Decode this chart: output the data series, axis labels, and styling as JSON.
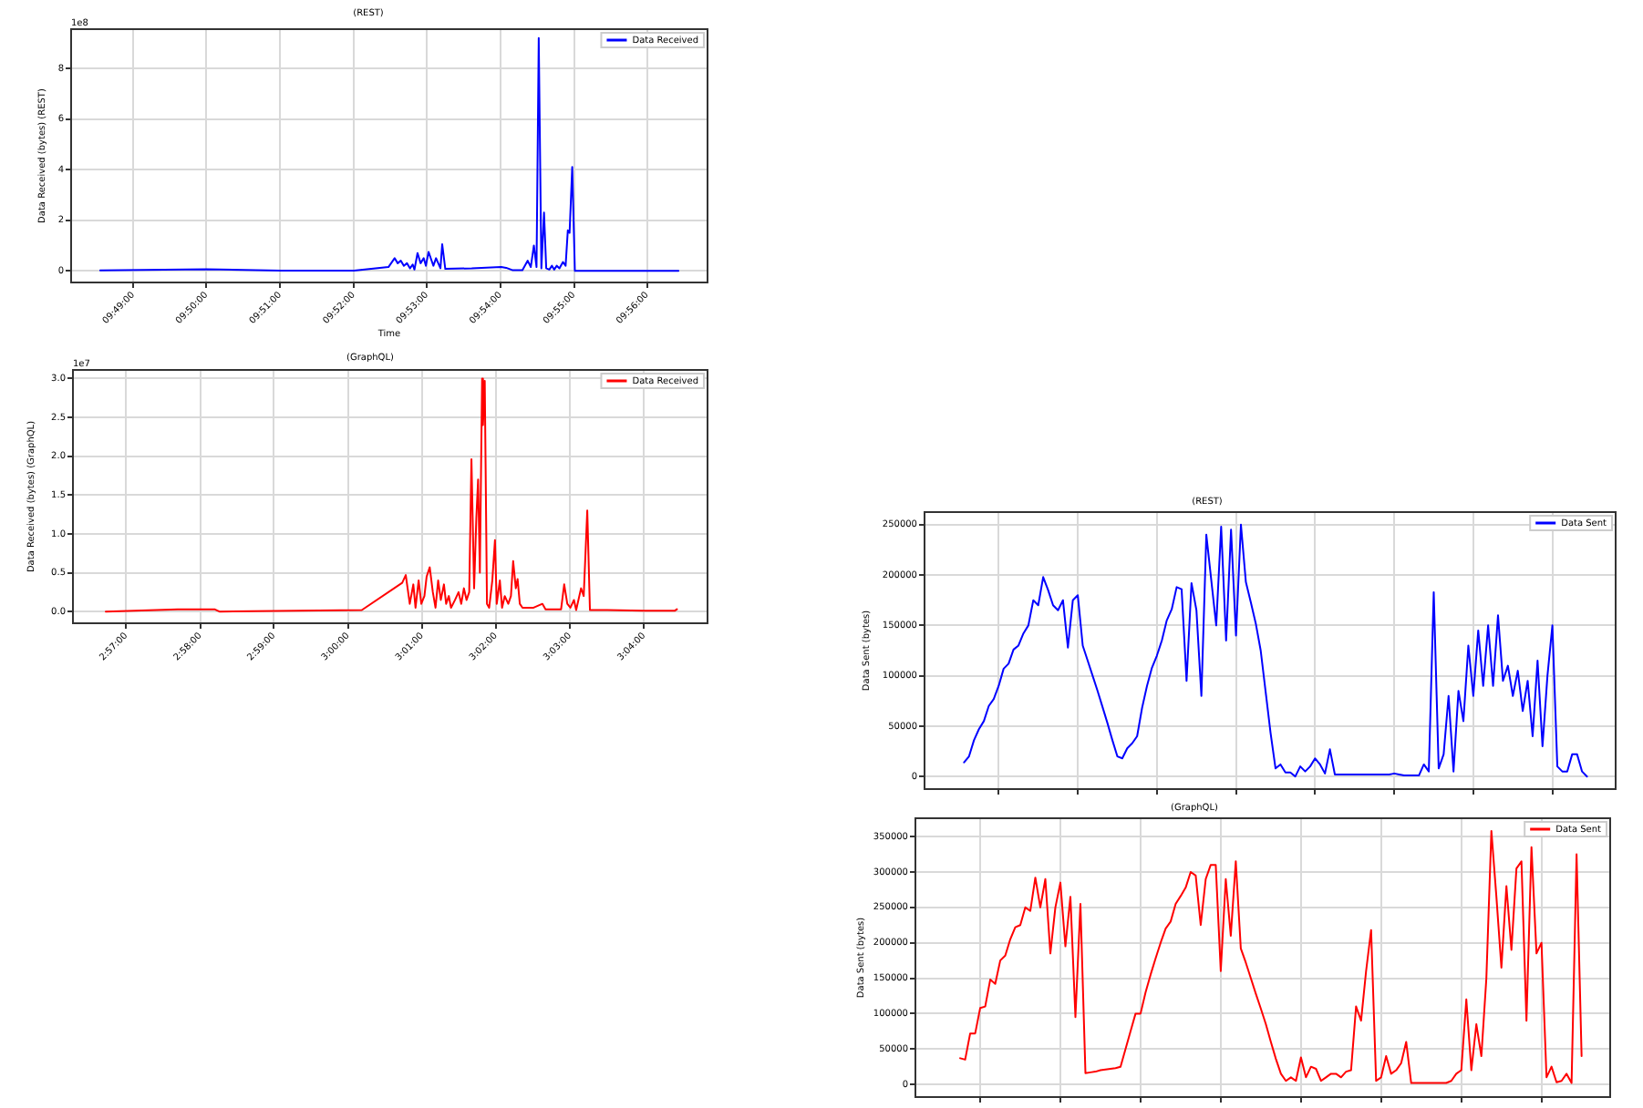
{
  "chart_data": [
    {
      "type": "line",
      "title": "(REST)",
      "xlabel": "Time",
      "ylabel": "Data Received (bytes) (REST)",
      "annotations": [
        "1e8"
      ],
      "grid": true,
      "legend": "top right",
      "xlim": [
        9.8026,
        9.947
      ],
      "xticks": [
        {
          "value": 9.8167,
          "label": "09:49:00"
        },
        {
          "value": 9.8333,
          "label": "09:50:00"
        },
        {
          "value": 9.85,
          "label": "09:51:00"
        },
        {
          "value": 9.8667,
          "label": "09:52:00"
        },
        {
          "value": 9.8833,
          "label": "09:53:00"
        },
        {
          "value": 9.9,
          "label": "09:54:00"
        },
        {
          "value": 9.9167,
          "label": "09:55:00"
        },
        {
          "value": 9.9333,
          "label": "09:56:00"
        }
      ],
      "ylim": [
        -0.46,
        9.55
      ],
      "yticks": [
        0,
        2,
        4,
        6,
        8
      ],
      "x": [
        9.8092,
        9.8333,
        9.8501,
        9.8668,
        9.8746,
        9.876,
        9.8767,
        9.8774,
        9.8781,
        9.8788,
        9.8795,
        9.8801,
        9.8805,
        9.8812,
        9.8819,
        9.8826,
        9.8831,
        9.8837,
        9.8843,
        9.8848,
        9.8854,
        9.8859,
        9.8864,
        9.8868,
        9.8875,
        9.8935,
        9.9002,
        9.9013,
        9.9027,
        9.905,
        9.9062,
        9.9069,
        9.9076,
        9.9082,
        9.9087,
        9.9093,
        9.9099,
        9.9104,
        9.9111,
        9.9117,
        9.9122,
        9.9128,
        9.9134,
        9.9142,
        9.9148,
        9.9153,
        9.9157,
        9.9163,
        9.9169,
        9.9404
      ],
      "series": [
        {
          "name": "Data Received",
          "color": "#0000ff",
          "values": [
            0.02,
            0.06,
            0.01,
            0.01,
            0.15,
            0.5,
            0.3,
            0.4,
            0.2,
            0.3,
            0.1,
            0.25,
            0.05,
            0.7,
            0.3,
            0.5,
            0.2,
            0.75,
            0.45,
            0.2,
            0.5,
            0.3,
            0.1,
            1.05,
            0.08,
            0.1,
            0.15,
            0.12,
            0.03,
            0.03,
            0.4,
            0.15,
            1.0,
            0.15,
            9.2,
            0.1,
            2.3,
            0.1,
            0.05,
            0.2,
            0.05,
            0.2,
            0.1,
            0.35,
            0.2,
            1.6,
            1.5,
            4.1,
            0,
            0
          ]
        }
      ]
    },
    {
      "type": "line",
      "title": "(GraphQL)",
      "ylabel": "Data Received (bytes) (GraphQL)",
      "annotations": [
        "1e7"
      ],
      "grid": true,
      "legend": "top right",
      "xlim": [
        2.938,
        3.081
      ],
      "xticks": [
        {
          "value": 2.95,
          "label": "2:57:00"
        },
        {
          "value": 2.9667,
          "label": "2:58:00"
        },
        {
          "value": 2.9833,
          "label": "2:59:00"
        },
        {
          "value": 3,
          "label": "3:00:00"
        },
        {
          "value": 3.0167,
          "label": "3:01:00"
        },
        {
          "value": 3.0333,
          "label": "3:02:00"
        },
        {
          "value": 3.05,
          "label": "3:03:00"
        },
        {
          "value": 3.0667,
          "label": "3:04:00"
        }
      ],
      "ylim": [
        -0.15,
        3.11
      ],
      "yticks": [
        {
          "value": 0,
          "label": "0.0"
        },
        {
          "value": 0.5,
          "label": "0.5"
        },
        {
          "value": 1,
          "label": "1.0"
        },
        {
          "value": 1.5,
          "label": "1.5"
        },
        {
          "value": 2,
          "label": "2.0"
        },
        {
          "value": 2.5,
          "label": "2.5"
        },
        {
          "value": 3,
          "label": "3.0"
        }
      ],
      "x": [
        2.9454,
        2.9616,
        2.9699,
        2.971,
        3.0031,
        3.0122,
        3.013,
        3.0139,
        3.0147,
        3.0152,
        3.0159,
        3.0165,
        3.0172,
        3.0177,
        3.0184,
        3.0191,
        3.0197,
        3.0203,
        3.0209,
        3.0216,
        3.0221,
        3.0227,
        3.0232,
        3.0241,
        3.0249,
        3.0255,
        3.0261,
        3.0267,
        3.0273,
        3.0278,
        3.0284,
        3.0289,
        3.0293,
        3.0297,
        3.0302,
        3.0304,
        3.0308,
        3.0313,
        3.0318,
        3.0325,
        3.0331,
        3.0335,
        3.0342,
        3.0347,
        3.0353,
        3.0361,
        3.0367,
        3.0372,
        3.0378,
        3.0382,
        3.0387,
        3.0393,
        3.0418,
        3.0438,
        3.0445,
        3.048,
        3.0487,
        3.0494,
        3.0501,
        3.0509,
        3.0514,
        3.0525,
        3.0531,
        3.0539,
        3.0545,
        3.0584,
        3.0666,
        3.0736,
        3.0741
      ],
      "series": [
        {
          "name": "Data Received",
          "color": "#ff0000",
          "values": [
            0,
            0.03,
            0.03,
            0,
            0.02,
            0.37,
            0.47,
            0.1,
            0.35,
            0.05,
            0.4,
            0.1,
            0.2,
            0.45,
            0.57,
            0.25,
            0.05,
            0.4,
            0.15,
            0.35,
            0.1,
            0.2,
            0.05,
            0.15,
            0.25,
            0.1,
            0.3,
            0.15,
            0.25,
            1.96,
            0.3,
            1.2,
            1.7,
            0.5,
            3.0,
            2.4,
            2.97,
            0.1,
            0.05,
            0.4,
            0.92,
            0.1,
            0.4,
            0.05,
            0.2,
            0.1,
            0.2,
            0.65,
            0.3,
            0.42,
            0.1,
            0.05,
            0.05,
            0.1,
            0.03,
            0.03,
            0.35,
            0.1,
            0.05,
            0.15,
            0.02,
            0.3,
            0.2,
            1.3,
            0.02,
            0.02,
            0.01,
            0.01,
            0.03
          ]
        }
      ]
    },
    {
      "type": "line",
      "title": "(REST)",
      "ylabel": "Data Sent (bytes)",
      "grid": true,
      "legend": "top right",
      "tick_labels": "y",
      "categories": [
        null,
        null,
        null,
        null,
        null,
        null,
        null,
        null,
        null,
        null,
        null,
        null,
        null,
        null,
        null,
        null,
        null,
        null,
        null,
        null,
        null,
        null,
        null,
        null,
        null,
        null,
        null,
        null,
        null,
        null,
        null,
        null,
        null,
        null,
        null,
        null,
        null,
        null,
        null,
        null,
        null,
        null,
        null,
        null,
        null,
        null,
        null,
        null,
        null,
        null,
        null,
        null,
        null,
        null,
        null,
        null,
        null,
        null,
        null,
        null,
        null,
        null,
        null,
        null,
        null,
        null,
        null,
        null,
        null,
        null,
        null,
        null,
        null,
        null,
        null,
        null,
        null,
        null,
        null,
        null,
        null,
        null,
        null,
        null,
        null,
        null,
        null,
        null,
        null,
        null,
        null,
        null,
        null,
        null,
        null,
        null,
        null,
        null,
        null,
        null,
        null,
        null,
        null,
        null,
        null,
        null,
        null,
        null,
        null,
        null,
        null,
        null,
        null,
        null,
        null,
        null,
        null,
        null,
        null,
        null,
        null,
        null,
        null,
        null,
        null,
        null,
        null
      ],
      "ylim": [
        -12500,
        262500
      ],
      "yticks": [
        0,
        50000,
        100000,
        150000,
        200000,
        250000
      ],
      "series": [
        {
          "name": "Data Sent",
          "color": "#0000ff",
          "values": [
            14000,
            20000,
            36000,
            47000,
            55000,
            70000,
            77000,
            90000,
            107000,
            112000,
            126000,
            130000,
            142000,
            150000,
            175000,
            170000,
            198000,
            185000,
            170000,
            165000,
            175000,
            128000,
            175000,
            180000,
            130000,
            115000,
            100000,
            85000,
            69000,
            53000,
            36000,
            20000,
            18000,
            28000,
            33000,
            40000,
            68000,
            90000,
            108000,
            120000,
            135000,
            155000,
            166000,
            188000,
            186000,
            95000,
            192000,
            165000,
            80000,
            240000,
            195000,
            150000,
            248000,
            135000,
            245000,
            140000,
            250000,
            193000,
            173000,
            152000,
            125000,
            84000,
            43000,
            8000,
            12000,
            4000,
            4000,
            0,
            10000,
            5000,
            10000,
            18000,
            12000,
            3000,
            27000,
            2000,
            2000,
            2000,
            2000,
            2000,
            2000,
            2000,
            2000,
            2000,
            2000,
            2000,
            2000,
            3000,
            2000,
            1000,
            1000,
            1000,
            1000,
            12000,
            5000,
            183000,
            8000,
            22000,
            80000,
            5000,
            85000,
            55000,
            130000,
            80000,
            145000,
            90000,
            150000,
            90000,
            160000,
            95000,
            110000,
            80000,
            105000,
            65000,
            95000,
            40000,
            115000,
            30000,
            100000,
            150000,
            10000,
            5000,
            5000,
            22000,
            22000,
            5000,
            0
          ]
        }
      ]
    },
    {
      "type": "line",
      "title": "(GraphQL)",
      "ylabel": "Data Sent (bytes)",
      "grid": true,
      "legend": "top right",
      "tick_labels": "y",
      "categories": [
        null,
        null,
        null,
        null,
        null,
        null,
        null,
        null,
        null,
        null,
        null,
        null,
        null,
        null,
        null,
        null,
        null,
        null,
        null,
        null,
        null,
        null,
        null,
        null,
        null,
        null,
        null,
        null,
        null,
        null,
        null,
        null,
        null,
        null,
        null,
        null,
        null,
        null,
        null,
        null,
        null,
        null,
        null,
        null,
        null,
        null,
        null,
        null,
        null,
        null,
        null,
        null,
        null,
        null,
        null,
        null,
        null,
        null,
        null,
        null,
        null,
        null,
        null,
        null,
        null,
        null,
        null,
        null,
        null,
        null,
        null,
        null,
        null,
        null,
        null,
        null,
        null,
        null,
        null,
        null,
        null,
        null,
        null,
        null,
        null,
        null,
        null,
        null,
        null,
        null,
        null,
        null,
        null,
        null,
        null,
        null,
        null,
        null,
        null,
        null,
        null,
        null,
        null,
        null,
        null,
        null,
        null,
        null,
        null,
        null,
        null,
        null,
        null,
        null,
        null,
        null,
        null,
        null,
        null,
        null,
        null,
        null,
        null,
        null,
        null
      ],
      "ylim": [
        -17900,
        375900
      ],
      "yticks": [
        0,
        50000,
        100000,
        150000,
        200000,
        250000,
        300000,
        350000
      ],
      "series": [
        {
          "name": "Data Sent",
          "color": "#ff0000",
          "values": [
            37000,
            35000,
            72000,
            72000,
            108000,
            110000,
            148000,
            142000,
            175000,
            182000,
            205000,
            222000,
            225000,
            250000,
            245000,
            292000,
            250000,
            290000,
            185000,
            250000,
            285000,
            195000,
            265000,
            95000,
            255000,
            16000,
            17000,
            18000,
            20000,
            21000,
            22000,
            23000,
            25000,
            50000,
            75000,
            100000,
            100000,
            130000,
            155000,
            178000,
            200000,
            220000,
            230000,
            255000,
            266000,
            278000,
            300000,
            295000,
            225000,
            290000,
            310000,
            310000,
            160000,
            290000,
            210000,
            315000,
            192000,
            172000,
            150000,
            128000,
            107000,
            85000,
            60000,
            36000,
            15000,
            5000,
            10000,
            5000,
            38000,
            10000,
            25000,
            22000,
            5000,
            10000,
            15000,
            15000,
            10000,
            18000,
            20000,
            110000,
            90000,
            160000,
            218000,
            5000,
            10000,
            40000,
            15000,
            20000,
            30000,
            60000,
            2000,
            2000,
            2000,
            2000,
            2000,
            2000,
            2000,
            2000,
            5000,
            15000,
            20000,
            120000,
            20000,
            85000,
            40000,
            150000,
            358000,
            265000,
            165000,
            280000,
            190000,
            305000,
            315000,
            90000,
            335000,
            185000,
            200000,
            10000,
            25000,
            3000,
            5000,
            15000,
            2000,
            325000,
            40000
          ]
        }
      ]
    }
  ]
}
